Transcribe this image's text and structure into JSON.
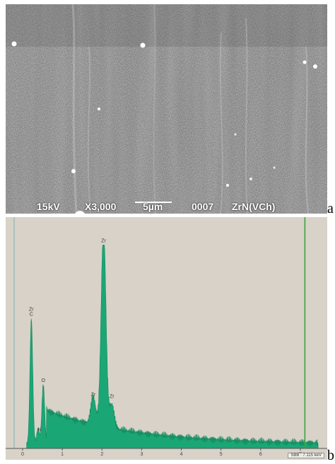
{
  "panel_a": {
    "letter": "a",
    "voltage": "15kV",
    "magnification": "X3,000",
    "scale": "5µm",
    "image_number": "0007",
    "sample": "ZrN(VCh)"
  },
  "panel_b": {
    "letter": "b",
    "status_text": "SBB : 7.115 keV"
  },
  "chart_data": {
    "type": "area",
    "xlim": [
      0,
      7.5
    ],
    "x_ticks": [
      "0",
      "1",
      "2",
      "3",
      "4",
      "5",
      "6",
      "7"
    ],
    "peaks": [
      {
        "label": "Zr\nC",
        "x": 0.22,
        "y": 0.63
      },
      {
        "label": "O",
        "x": 0.52,
        "y": 0.3
      },
      {
        "label": "N",
        "x": 0.39,
        "y": 0.08
      },
      {
        "label": "Zr",
        "x": 2.04,
        "y": 1.0
      },
      {
        "label": "Zr",
        "x": 1.78,
        "y": 0.14
      },
      {
        "label": "Zr",
        "x": 2.25,
        "y": 0.12
      }
    ],
    "marker_x": 7.115,
    "colors": {
      "fill": "#1aa775",
      "edge": "#128a5e",
      "marker": "#3ca23c",
      "background": "#d8d2c8"
    }
  }
}
